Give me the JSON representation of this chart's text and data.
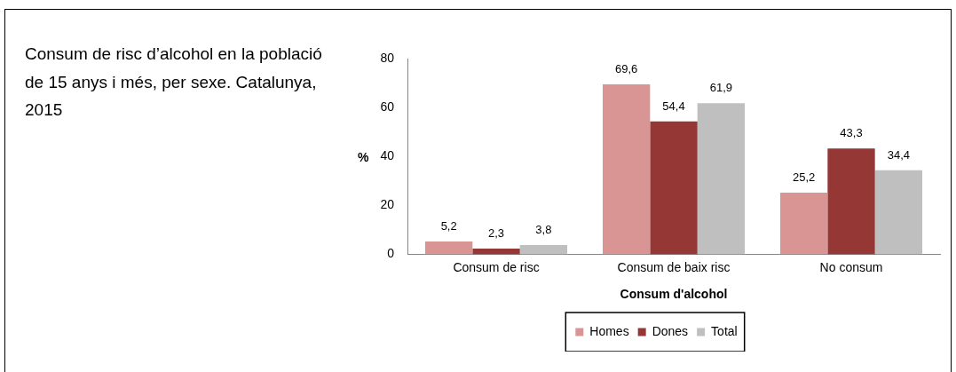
{
  "chart_data": {
    "type": "bar",
    "title": "Consum de risc d’alcohol en la població de 15 anys i més, per sexe. Catalunya, 2015",
    "xlabel": "Consum d'alcohol",
    "ylabel": "%",
    "categories": [
      "Consum de risc",
      "Consum de baix risc",
      "No consum"
    ],
    "series": [
      {
        "name": "Homes",
        "color": "#d99594",
        "values": [
          5.2,
          69.6,
          25.2
        ],
        "value_labels": [
          "5,2",
          "69,6",
          "25,2"
        ]
      },
      {
        "name": "Dones",
        "color": "#953735",
        "values": [
          2.3,
          54.4,
          43.3
        ],
        "value_labels": [
          "2,3",
          "54,4",
          "43,3"
        ]
      },
      {
        "name": "Total",
        "color": "#bfbfbf",
        "values": [
          3.8,
          61.9,
          34.4
        ],
        "value_labels": [
          "3,8",
          "61,9",
          "34,4"
        ]
      }
    ],
    "ylim": [
      0,
      80
    ],
    "yticks": [
      0,
      20,
      40,
      60,
      80
    ],
    "legend": "bottom"
  }
}
